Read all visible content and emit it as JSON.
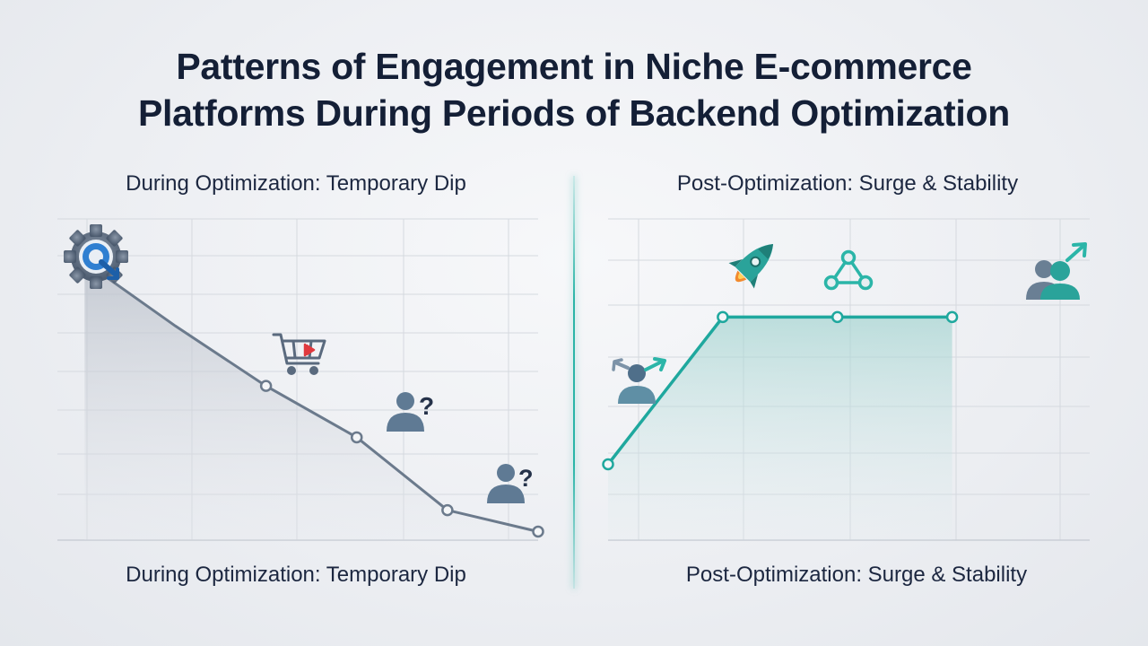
{
  "title": {
    "line1": "Patterns of Engagement in Niche E-commerce",
    "line2": "Platforms During Periods of Backend Optimization"
  },
  "panels": {
    "left": {
      "title": "During Optimization: Temporary Dip",
      "caption": "During Optimization: Temporary Dip"
    },
    "right": {
      "title": "Post-Optimization: Surge & Stability",
      "caption": "Post-Optimization: Surge & Stability"
    }
  },
  "colors": {
    "dip_line": "#6b7a8c",
    "surge_line": "#1fa89e",
    "dip_fill": "#c9ced6",
    "surge_fill": "#b9dcda",
    "icon_blue": "#2f7fd1",
    "icon_slate": "#5f7a94",
    "icon_teal": "#2bb5a8",
    "icon_red": "#e0393e"
  },
  "chart_data": [
    {
      "type": "line",
      "title": "During Optimization: Temporary Dip",
      "x": [
        0,
        1,
        2,
        3,
        4,
        5
      ],
      "y": [
        6.5,
        5.0,
        3.6,
        2.4,
        0.7,
        0.2
      ],
      "xlim": [
        -0.3,
        5.0
      ],
      "ylim": [
        0,
        7.5
      ],
      "grid": true,
      "area_fill": true,
      "marked_points": [
        2,
        3,
        4,
        5
      ],
      "icons": [
        "gear-icon",
        "shopping-cart-icon",
        "confused-user-icon",
        "confused-user-icon"
      ]
    },
    {
      "type": "line",
      "title": "Post-Optimization: Surge & Stability",
      "x": [
        0,
        1,
        2,
        3
      ],
      "y": [
        1.7,
        5.0,
        5.0,
        5.0
      ],
      "xlim": [
        0,
        4.2
      ],
      "ylim": [
        0,
        7.2
      ],
      "grid": true,
      "area_fill": true,
      "marked_points": [
        0,
        1,
        2,
        3
      ],
      "icons": [
        "user-outreach-icon",
        "rocket-icon",
        "network-icon",
        "user-growth-icon"
      ]
    }
  ]
}
